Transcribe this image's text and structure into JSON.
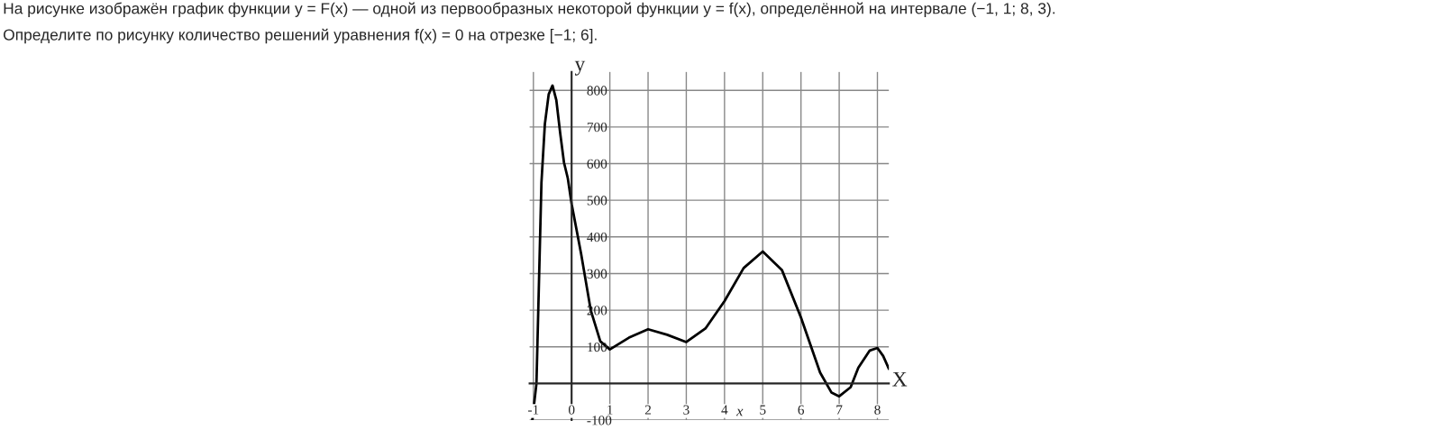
{
  "chart_data": {
    "type": "line",
    "title": "На рисунке изображён график функции y = F(x) — одной из первообразных некоторой функции y = f(x), определённой на интервале (−1, 1; 8, 3).",
    "subtitle": "Определите по рисунку количество решений уравнения f(x) = 0 на отрезке [−1; 6].",
    "xlabel": "X",
    "ylabel": "y",
    "annotations": [
      "x"
    ],
    "series": [
      {
        "color": "#000000",
        "x": [
          -1.03,
          -0.92,
          -0.79,
          -0.7,
          -0.6,
          -0.5,
          -0.4,
          -0.3,
          -0.2,
          -0.1,
          0,
          0.25,
          0.5,
          0.75,
          1,
          1.5,
          2,
          2.5,
          3,
          3.5,
          4,
          4.5,
          5,
          5.5,
          6,
          6.5,
          6.8,
          7,
          7.3,
          7.5,
          7.8,
          8,
          8.15,
          8.3
        ],
        "values": [
          -100,
          0,
          547,
          708,
          789,
          813,
          773,
          684,
          603,
          560,
          490,
          353,
          200,
          115,
          93,
          125,
          148,
          133,
          113,
          150,
          225,
          315,
          360,
          310,
          180,
          30,
          -25,
          -35,
          -10,
          43,
          90,
          97,
          75,
          40
        ]
      }
    ],
    "xlim": [
      -1.1,
      8.3
    ],
    "ylim": [
      -100,
      850
    ],
    "xticks": [
      -1,
      0,
      1,
      2,
      3,
      4,
      5,
      6,
      7,
      8
    ],
    "yticks": [
      -100,
      100,
      200,
      300,
      400,
      500,
      600,
      700,
      800
    ],
    "grid": true,
    "legend": false,
    "marker": "none",
    "line_style": "solid"
  }
}
